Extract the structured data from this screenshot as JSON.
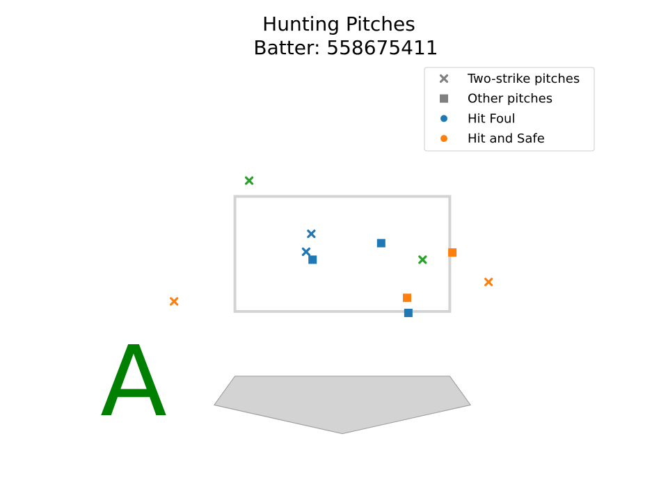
{
  "chart_data": {
    "type": "scatter",
    "title": "Hunting Pitches",
    "subtitle": "Batter: 558675411",
    "grade": "A",
    "colors": {
      "foul": "#1f77b4",
      "safe": "#ff7f0e",
      "other": "#2ca02c",
      "legend_marker": "#808080",
      "grade": "#008000",
      "strike_zone": "#d3d3d3",
      "plate_fill": "#d3d3d3",
      "plate_edge": "#a0a0a0"
    },
    "legend": {
      "placement": "top-right",
      "entries": [
        {
          "label": "Two-strike pitches",
          "marker": "x"
        },
        {
          "label": "Other pitches",
          "marker": "square"
        },
        {
          "label": "Hit Foul",
          "marker": "circle",
          "color_key": "foul"
        },
        {
          "label": "Hit and Safe",
          "marker": "circle",
          "color_key": "safe"
        }
      ]
    },
    "xlim": [
      -2.0,
      2.0
    ],
    "ylim": [
      -0.3,
      5.0
    ],
    "strike_zone": {
      "x": [
        -0.83,
        0.83
      ],
      "y": [
        1.5,
        3.1
      ]
    },
    "home_plate": [
      [
        -0.83,
        0.6
      ],
      [
        0.83,
        0.6
      ],
      [
        0.99,
        0.2
      ],
      [
        0.0,
        -0.2
      ],
      [
        -0.99,
        0.2
      ]
    ],
    "grid": false,
    "points": [
      {
        "x": -0.72,
        "y": 3.32,
        "marker": "x",
        "outcome": "other"
      },
      {
        "x": -0.24,
        "y": 2.58,
        "marker": "x",
        "outcome": "foul"
      },
      {
        "x": -0.28,
        "y": 2.33,
        "marker": "x",
        "outcome": "foul"
      },
      {
        "x": 0.3,
        "y": 2.45,
        "marker": "square",
        "outcome": "foul"
      },
      {
        "x": -0.23,
        "y": 2.22,
        "marker": "square",
        "outcome": "foul"
      },
      {
        "x": 0.85,
        "y": 2.32,
        "marker": "square",
        "outcome": "safe"
      },
      {
        "x": 0.62,
        "y": 2.22,
        "marker": "x",
        "outcome": "other"
      },
      {
        "x": 1.13,
        "y": 1.91,
        "marker": "x",
        "outcome": "safe"
      },
      {
        "x": 0.5,
        "y": 1.69,
        "marker": "square",
        "outcome": "safe"
      },
      {
        "x": -1.3,
        "y": 1.64,
        "marker": "x",
        "outcome": "safe"
      },
      {
        "x": 0.51,
        "y": 1.48,
        "marker": "square",
        "outcome": "foul"
      }
    ]
  }
}
